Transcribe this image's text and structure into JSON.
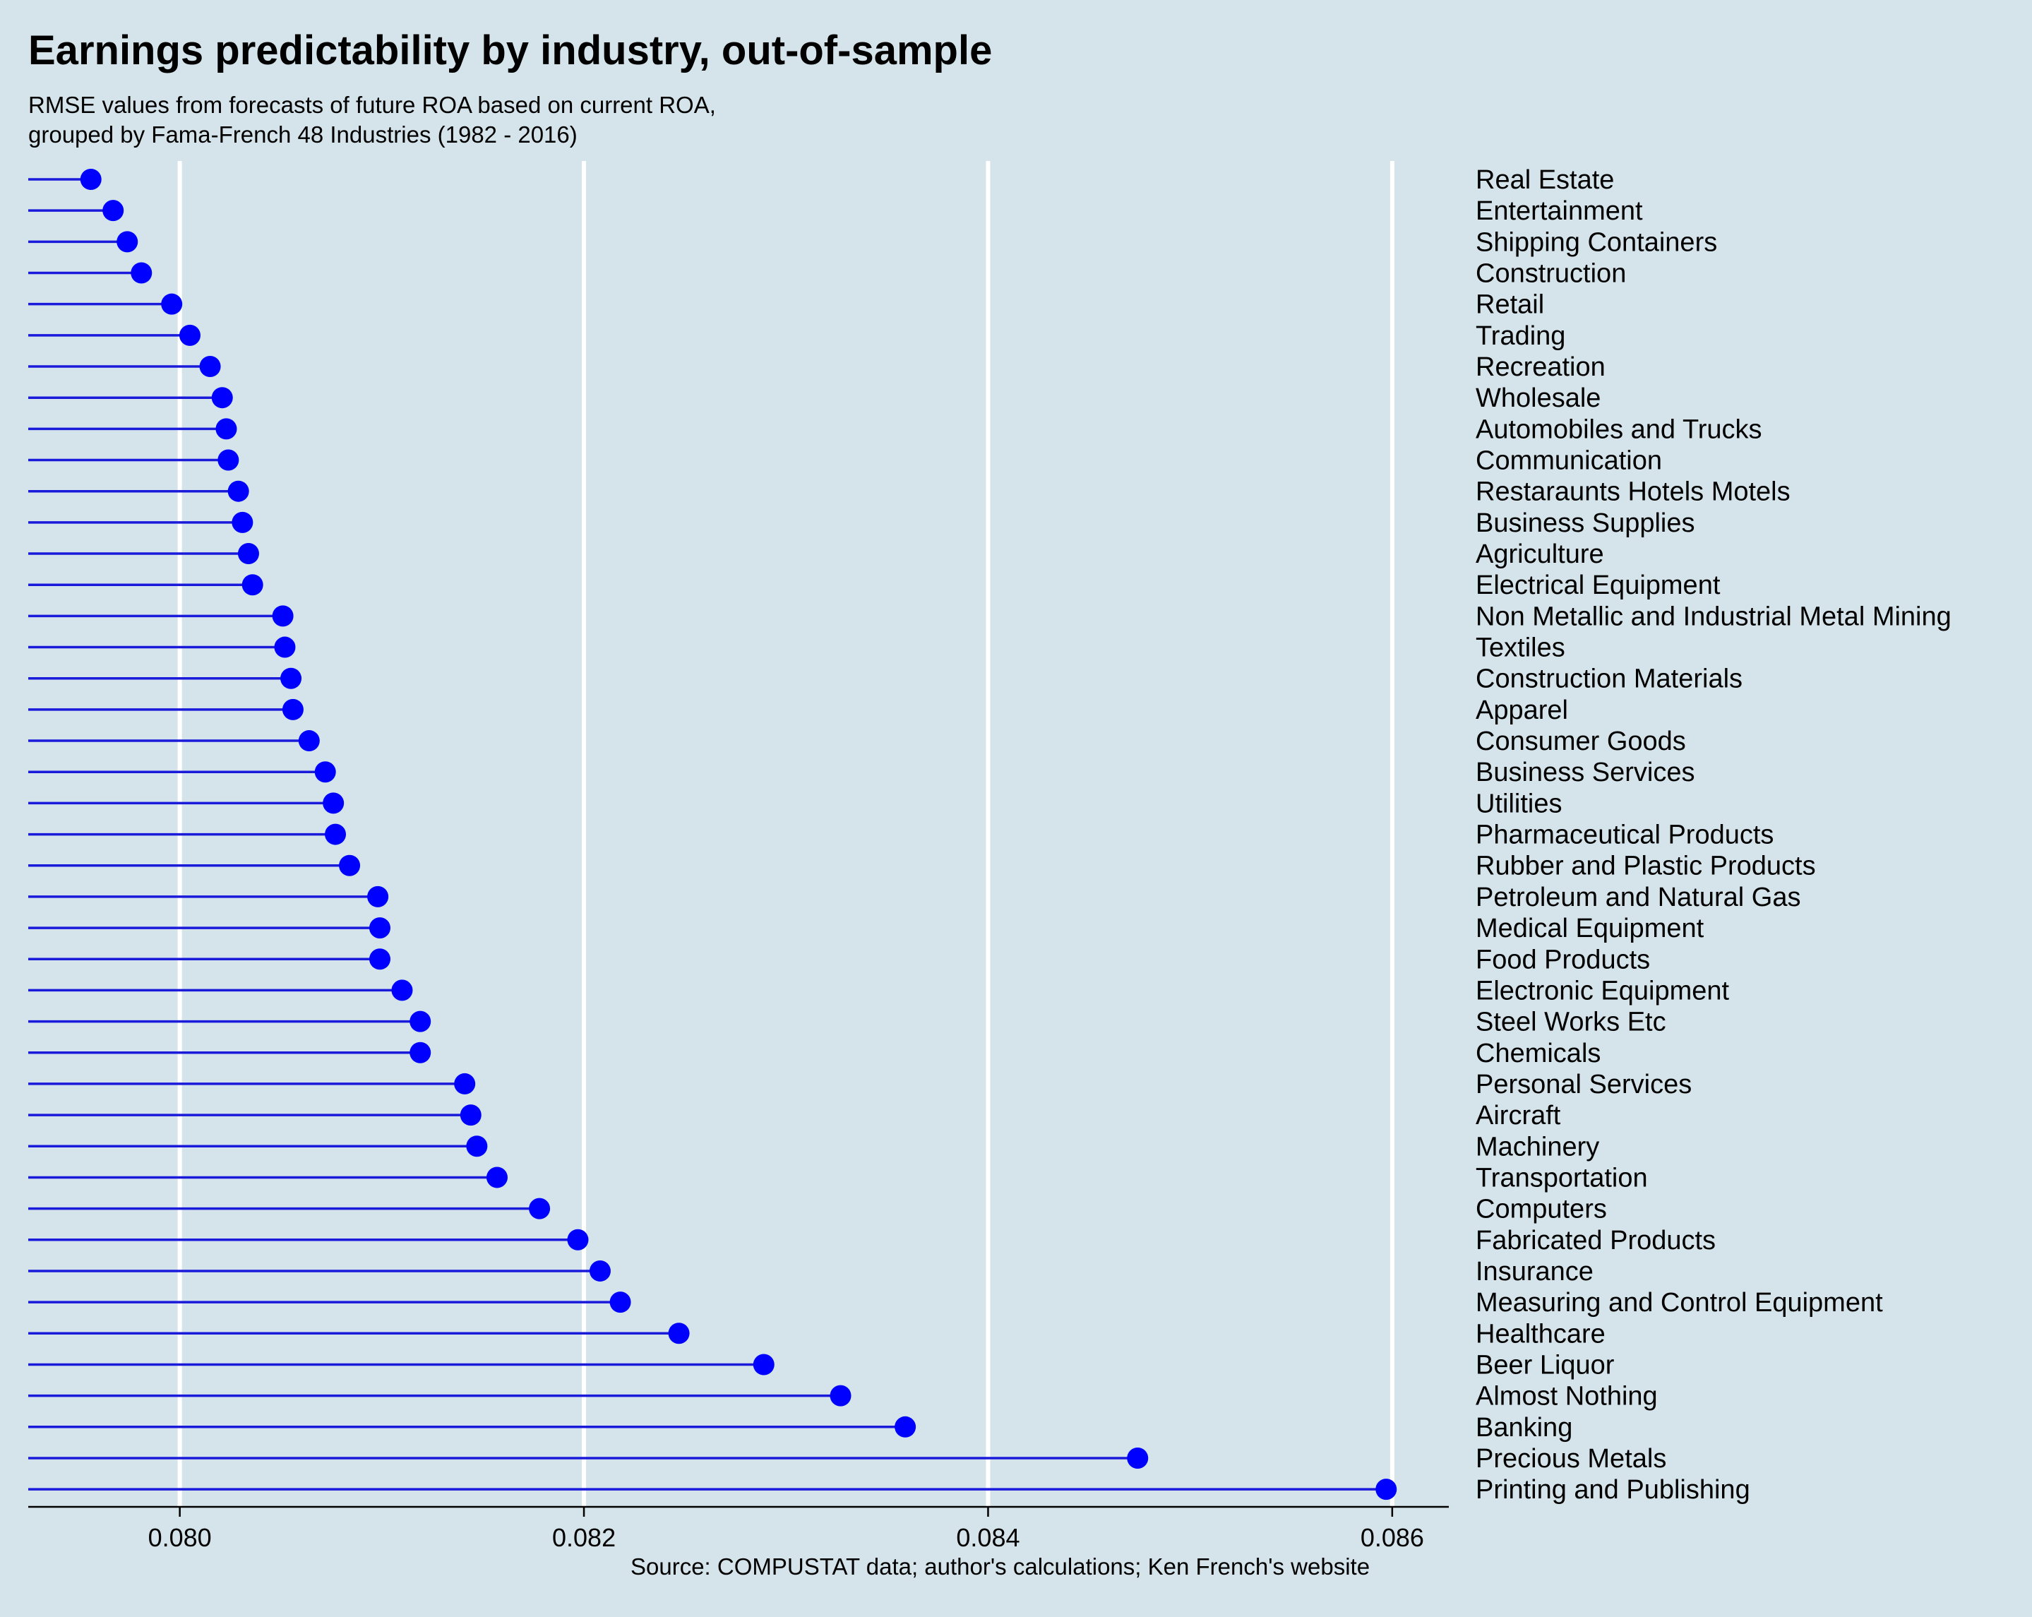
{
  "colors": {
    "background": "#d5e4eb",
    "gridline": "#ffffff",
    "segment": "#1a1adb",
    "point": "#0000ff",
    "text": "#000000"
  },
  "chart_data": {
    "type": "lollipop",
    "title": "Earnings predictability by industry, out-of-sample",
    "subtitle_lines": [
      "RMSE values from forecasts of future ROA based on current ROA,",
      "grouped by Fama-French 48 Industries (1982 - 2016)"
    ],
    "caption": "Source: COMPUSTAT data; author's calculations; Ken French's website",
    "xlabel": "",
    "ylabel": "",
    "xlim": [
      0.07925,
      0.08628
    ],
    "x_ticks": [
      0.08,
      0.082,
      0.084,
      0.086
    ],
    "x_tick_labels": [
      "0.080",
      "0.082",
      "0.084",
      "0.086"
    ],
    "grid": "vertical major gridlines",
    "category_labels_position": "right",
    "industries": [
      {
        "name": "Real Estate",
        "rmse": 0.07956
      },
      {
        "name": "Entertainment",
        "rmse": 0.07967
      },
      {
        "name": "Shipping Containers",
        "rmse": 0.07974
      },
      {
        "name": "Construction",
        "rmse": 0.07981
      },
      {
        "name": "Retail",
        "rmse": 0.07996
      },
      {
        "name": "Trading",
        "rmse": 0.08005
      },
      {
        "name": "Recreation",
        "rmse": 0.08015
      },
      {
        "name": "Wholesale",
        "rmse": 0.08021
      },
      {
        "name": "Automobiles and Trucks",
        "rmse": 0.08023
      },
      {
        "name": "Communication",
        "rmse": 0.08024
      },
      {
        "name": "Restaraunts Hotels Motels",
        "rmse": 0.08029
      },
      {
        "name": "Business Supplies",
        "rmse": 0.08031
      },
      {
        "name": "Agriculture",
        "rmse": 0.08034
      },
      {
        "name": "Electrical Equipment",
        "rmse": 0.08036
      },
      {
        "name": "Non Metallic and Industrial Metal Mining",
        "rmse": 0.08051
      },
      {
        "name": "Textiles",
        "rmse": 0.08052
      },
      {
        "name": "Construction Materials",
        "rmse": 0.08055
      },
      {
        "name": "Apparel",
        "rmse": 0.08056
      },
      {
        "name": "Consumer Goods",
        "rmse": 0.08064
      },
      {
        "name": "Business Services",
        "rmse": 0.08072
      },
      {
        "name": "Utilities",
        "rmse": 0.08076
      },
      {
        "name": "Pharmaceutical Products",
        "rmse": 0.08077
      },
      {
        "name": "Rubber and Plastic Products",
        "rmse": 0.08084
      },
      {
        "name": "Petroleum and Natural Gas",
        "rmse": 0.08098
      },
      {
        "name": "Medical Equipment",
        "rmse": 0.08099
      },
      {
        "name": "Food Products",
        "rmse": 0.08099
      },
      {
        "name": "Electronic Equipment",
        "rmse": 0.0811
      },
      {
        "name": "Steel Works Etc",
        "rmse": 0.08119
      },
      {
        "name": "Chemicals",
        "rmse": 0.08119
      },
      {
        "name": "Personal Services",
        "rmse": 0.08141
      },
      {
        "name": "Aircraft",
        "rmse": 0.08144
      },
      {
        "name": "Machinery",
        "rmse": 0.08147
      },
      {
        "name": "Transportation",
        "rmse": 0.08157
      },
      {
        "name": "Computers",
        "rmse": 0.08178
      },
      {
        "name": "Fabricated Products",
        "rmse": 0.08197
      },
      {
        "name": "Insurance",
        "rmse": 0.08208
      },
      {
        "name": "Measuring and Control Equipment",
        "rmse": 0.08218
      },
      {
        "name": "Healthcare",
        "rmse": 0.08247
      },
      {
        "name": "Beer Liquor",
        "rmse": 0.08289
      },
      {
        "name": "Almost Nothing",
        "rmse": 0.08327
      },
      {
        "name": "Banking",
        "rmse": 0.08359
      },
      {
        "name": "Precious Metals",
        "rmse": 0.08474
      },
      {
        "name": "Printing and Publishing",
        "rmse": 0.08597
      }
    ]
  }
}
